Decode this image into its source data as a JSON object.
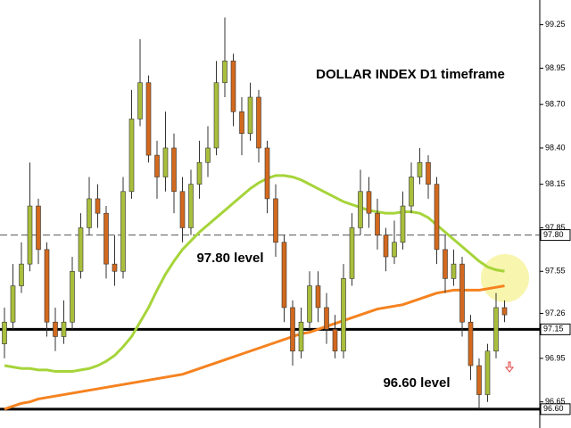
{
  "chart_data": {
    "type": "candlestick",
    "title": "DOLLAR INDEX D1 timeframe",
    "annotations": [
      "97.80 level",
      "96.60 level"
    ],
    "ylim": [
      96.47,
      99.42
    ],
    "yticks": [
      99.25,
      98.95,
      {
        "value": 98.7,
        "label": "98.70"
      },
      {
        "value": 98.4,
        "label": "98.40"
      },
      98.15,
      97.85,
      97.55,
      97.26,
      96.95,
      96.65
    ],
    "levels": [
      {
        "value": 97.8,
        "label": "97.80",
        "style": "dashed"
      },
      {
        "value": 97.15,
        "label": "97.15",
        "style": "solid"
      },
      {
        "value": 96.6,
        "label": "96.60",
        "style": "solid"
      }
    ],
    "up_color": "#a9bf3c",
    "down_color": "#d2691e",
    "open": [
      97.05,
      97.2,
      97.45,
      97.6,
      98.0,
      97.7,
      97.2,
      97.1,
      97.2,
      97.55,
      97.85,
      98.05,
      97.95,
      97.6,
      97.55,
      98.1,
      98.6,
      98.85,
      98.35,
      98.2,
      98.4,
      98.1,
      97.85,
      98.15,
      98.3,
      98.4,
      98.85,
      99.0,
      98.65,
      98.5,
      98.75,
      98.4,
      98.05,
      97.75,
      97.3,
      97.0,
      97.2,
      97.45,
      97.3,
      97.15,
      97.0,
      97.5,
      97.85,
      98.1,
      97.95,
      97.8,
      97.65,
      97.75,
      98.0,
      98.2,
      98.3,
      98.15,
      97.7,
      97.5,
      97.6,
      97.2,
      96.9,
      96.7,
      97.0,
      97.3
    ],
    "high": [
      97.3,
      97.6,
      97.75,
      98.3,
      98.05,
      97.75,
      97.3,
      97.35,
      97.65,
      97.95,
      98.2,
      98.15,
      98.0,
      97.8,
      98.2,
      98.8,
      99.15,
      98.9,
      98.45,
      98.65,
      98.5,
      98.2,
      98.25,
      98.45,
      98.55,
      99.0,
      99.3,
      99.05,
      98.75,
      98.85,
      98.8,
      98.45,
      98.15,
      97.8,
      97.35,
      97.3,
      97.55,
      97.55,
      97.4,
      97.25,
      97.6,
      97.95,
      98.25,
      98.2,
      98.05,
      97.85,
      97.9,
      98.1,
      98.3,
      98.4,
      98.35,
      98.2,
      97.8,
      97.7,
      97.65,
      97.25,
      96.95,
      97.05,
      97.4,
      97.35
    ],
    "low": [
      96.95,
      97.15,
      97.4,
      97.55,
      97.6,
      97.1,
      97.0,
      97.05,
      97.15,
      97.5,
      97.8,
      97.85,
      97.5,
      97.45,
      97.5,
      98.05,
      98.55,
      98.3,
      98.05,
      98.1,
      97.95,
      97.75,
      97.8,
      98.05,
      98.2,
      98.35,
      98.75,
      98.55,
      98.35,
      98.45,
      98.3,
      97.95,
      97.65,
      97.2,
      96.9,
      96.95,
      97.15,
      97.2,
      97.05,
      96.95,
      96.95,
      97.45,
      97.8,
      97.85,
      97.7,
      97.55,
      97.6,
      97.7,
      97.95,
      98.15,
      98.05,
      97.6,
      97.4,
      97.45,
      97.1,
      96.8,
      96.6,
      96.65,
      96.95,
      97.2
    ],
    "close": [
      97.2,
      97.45,
      97.6,
      98.0,
      97.7,
      97.2,
      97.1,
      97.2,
      97.55,
      97.85,
      98.05,
      97.95,
      97.6,
      97.55,
      98.1,
      98.6,
      98.85,
      98.35,
      98.2,
      98.4,
      98.1,
      97.85,
      98.15,
      98.3,
      98.4,
      98.85,
      99.0,
      98.65,
      98.5,
      98.75,
      98.4,
      98.05,
      97.75,
      97.3,
      97.0,
      97.2,
      97.45,
      97.3,
      97.15,
      97.0,
      97.5,
      97.85,
      98.1,
      97.95,
      97.8,
      97.65,
      97.75,
      98.0,
      98.2,
      98.3,
      98.15,
      97.7,
      97.5,
      97.6,
      97.2,
      96.9,
      96.7,
      97.0,
      97.3,
      97.25
    ],
    "moving_averages": [
      {
        "color": "#a6d43a",
        "values": [
          96.9,
          96.89,
          96.88,
          96.88,
          96.87,
          96.87,
          96.86,
          96.86,
          96.86,
          96.87,
          96.88,
          96.9,
          96.93,
          96.97,
          97.03,
          97.1,
          97.2,
          97.3,
          97.42,
          97.53,
          97.62,
          97.7,
          97.76,
          97.82,
          97.87,
          97.92,
          97.97,
          98.02,
          98.07,
          98.12,
          98.16,
          98.19,
          98.21,
          98.21,
          98.2,
          98.18,
          98.15,
          98.12,
          98.09,
          98.06,
          98.03,
          98.01,
          97.99,
          97.97,
          97.96,
          97.95,
          97.95,
          97.96,
          97.96,
          97.95,
          97.92,
          97.87,
          97.82,
          97.77,
          97.72,
          97.67,
          97.62,
          97.58,
          97.56,
          97.55
        ]
      },
      {
        "color": "#f5821f",
        "values": [
          96.6,
          96.62,
          96.64,
          96.65,
          96.67,
          96.68,
          96.69,
          96.7,
          96.71,
          96.72,
          96.73,
          96.74,
          96.75,
          96.76,
          96.77,
          96.78,
          96.79,
          96.8,
          96.81,
          96.82,
          96.83,
          96.84,
          96.86,
          96.88,
          96.9,
          96.92,
          96.94,
          96.96,
          96.98,
          97.0,
          97.02,
          97.04,
          97.06,
          97.08,
          97.1,
          97.12,
          97.13,
          97.15,
          97.17,
          97.19,
          97.21,
          97.23,
          97.25,
          97.27,
          97.29,
          97.3,
          97.31,
          97.32,
          97.34,
          97.36,
          97.38,
          97.4,
          97.41,
          97.42,
          97.42,
          97.42,
          97.42,
          97.43,
          97.44,
          97.45
        ]
      }
    ]
  }
}
